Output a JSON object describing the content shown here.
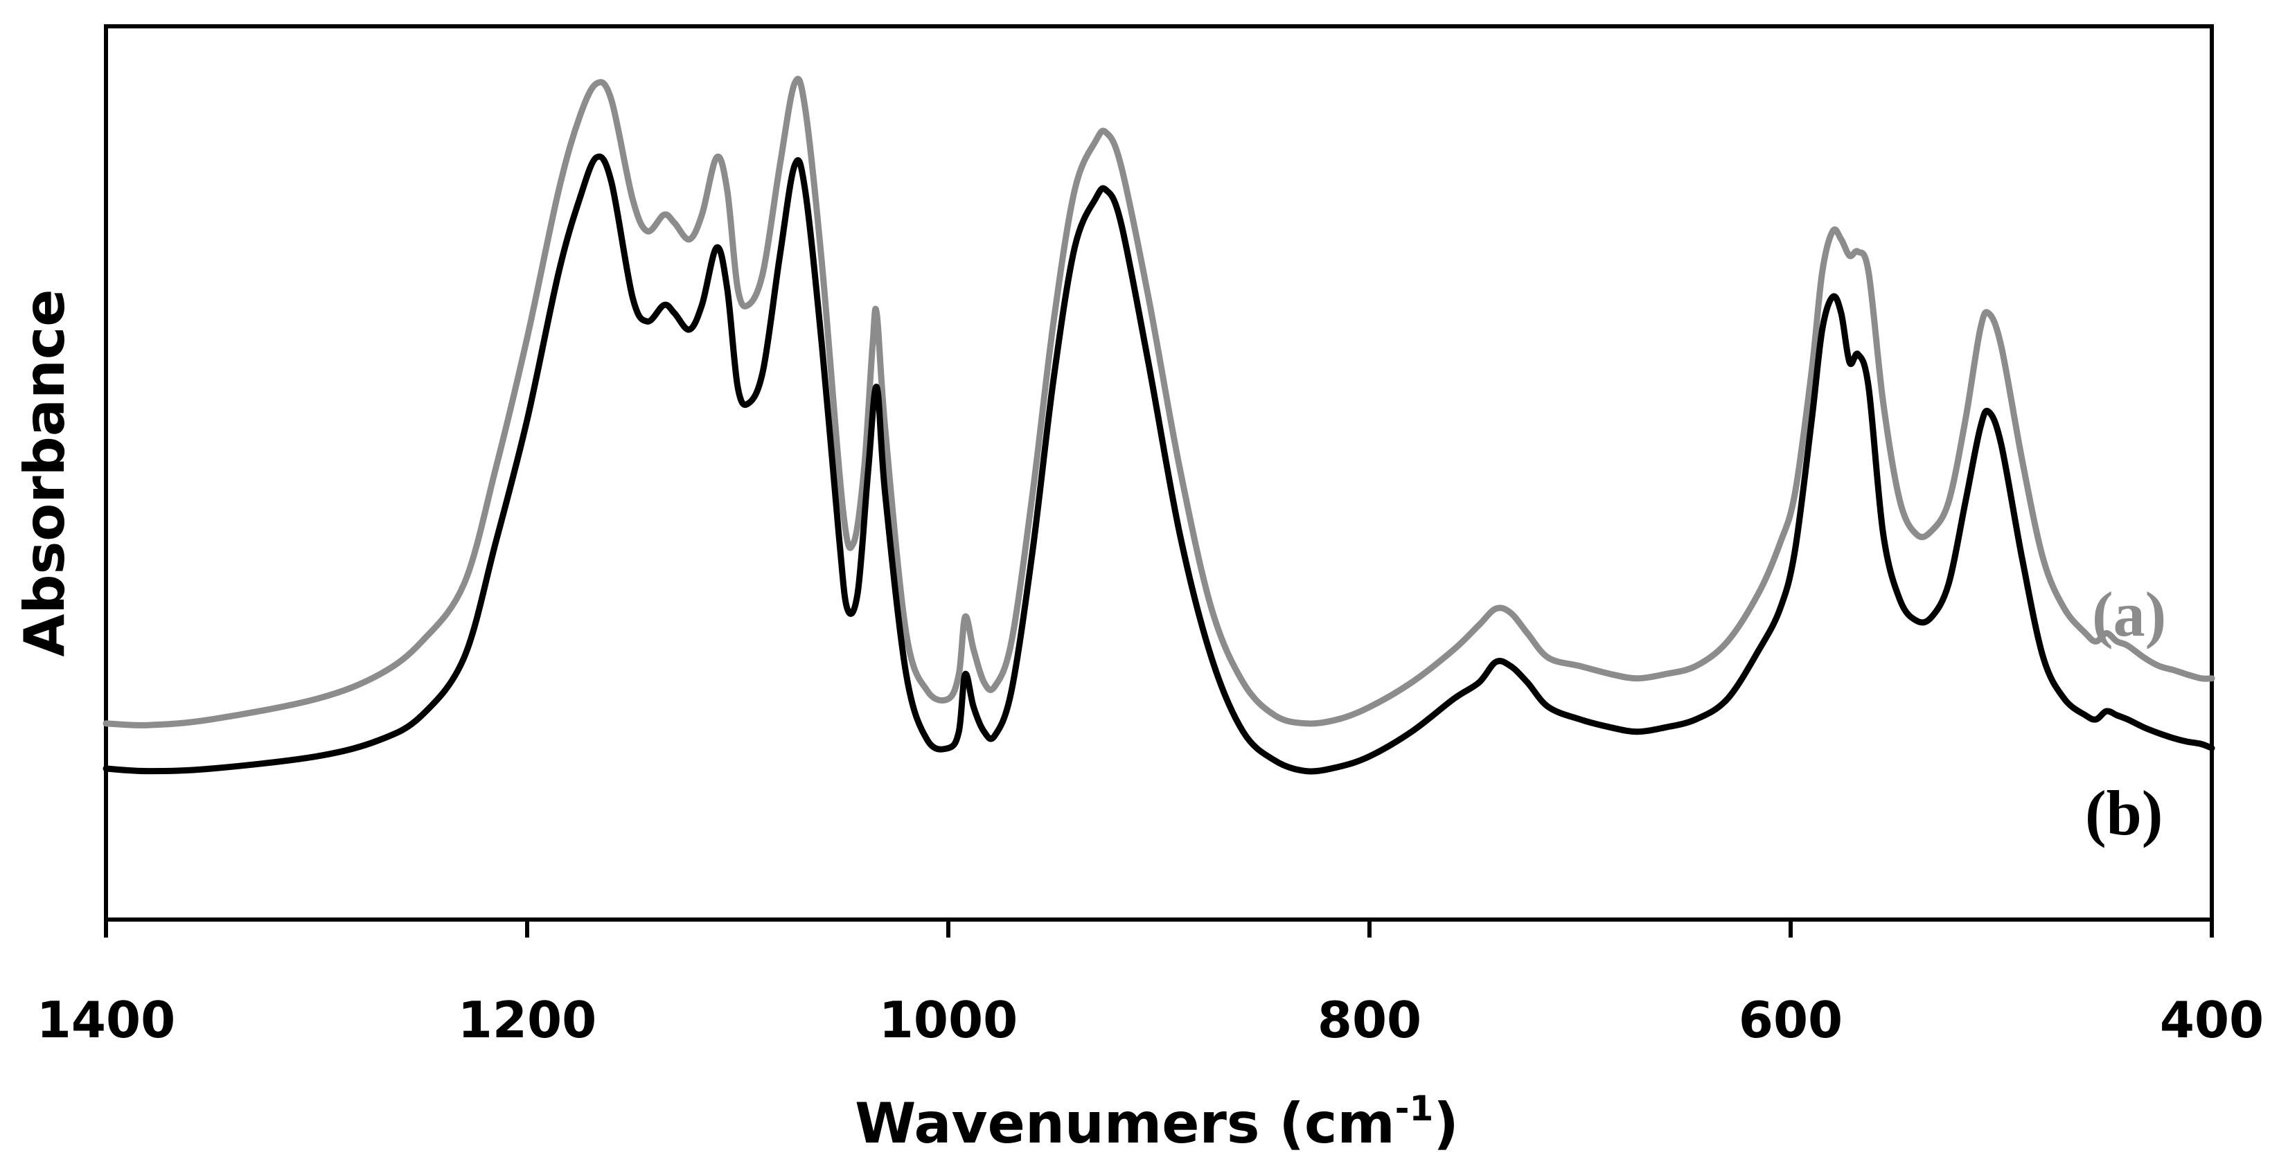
{
  "chart_data": {
    "type": "line",
    "title": "",
    "xlabel": "Wavenumers (cm",
    "xlabel_sup": "-1",
    "xlabel_close": ")",
    "ylabel": "Absorbance",
    "xlim": [
      1400,
      400
    ],
    "x_reversed": true,
    "ylim": [
      0,
      1
    ],
    "y_ticks_shown": false,
    "grid": false,
    "x_ticks": [
      "1400",
      "1200",
      "1000",
      "800",
      "600",
      "400"
    ],
    "series": [
      {
        "name": "(a)",
        "color": "#8c8c8c",
        "points": [
          [
            1400,
            0.19
          ],
          [
            1380,
            0.188
          ],
          [
            1350,
            0.195
          ],
          [
            1300,
            0.22
          ],
          [
            1270,
            0.25
          ],
          [
            1250,
            0.29
          ],
          [
            1230,
            0.36
          ],
          [
            1215,
            0.5
          ],
          [
            1200,
            0.66
          ],
          [
            1185,
            0.84
          ],
          [
            1175,
            0.93
          ],
          [
            1167,
            0.97
          ],
          [
            1160,
            0.95
          ],
          [
            1150,
            0.83
          ],
          [
            1143,
            0.79
          ],
          [
            1135,
            0.81
          ],
          [
            1130,
            0.8
          ],
          [
            1123,
            0.78
          ],
          [
            1117,
            0.81
          ],
          [
            1110,
            0.88
          ],
          [
            1105,
            0.84
          ],
          [
            1100,
            0.72
          ],
          [
            1095,
            0.7
          ],
          [
            1088,
            0.74
          ],
          [
            1080,
            0.87
          ],
          [
            1073,
            0.97
          ],
          [
            1068,
            0.94
          ],
          [
            1060,
            0.75
          ],
          [
            1050,
            0.45
          ],
          [
            1045,
            0.41
          ],
          [
            1040,
            0.5
          ],
          [
            1036,
            0.65
          ],
          [
            1034,
            0.69
          ],
          [
            1030,
            0.55
          ],
          [
            1020,
            0.3
          ],
          [
            1010,
            0.23
          ],
          [
            1000,
            0.22
          ],
          [
            995,
            0.25
          ],
          [
            992,
            0.32
          ],
          [
            988,
            0.28
          ],
          [
            983,
            0.24
          ],
          [
            978,
            0.235
          ],
          [
            970,
            0.29
          ],
          [
            960,
            0.47
          ],
          [
            950,
            0.68
          ],
          [
            940,
            0.84
          ],
          [
            930,
            0.9
          ],
          [
            925,
            0.91
          ],
          [
            918,
            0.87
          ],
          [
            905,
            0.71
          ],
          [
            890,
            0.5
          ],
          [
            875,
            0.33
          ],
          [
            860,
            0.24
          ],
          [
            845,
            0.2
          ],
          [
            830,
            0.19
          ],
          [
            815,
            0.195
          ],
          [
            800,
            0.21
          ],
          [
            780,
            0.24
          ],
          [
            760,
            0.28
          ],
          [
            748,
            0.31
          ],
          [
            740,
            0.33
          ],
          [
            733,
            0.325
          ],
          [
            725,
            0.3
          ],
          [
            715,
            0.27
          ],
          [
            700,
            0.26
          ],
          [
            685,
            0.25
          ],
          [
            673,
            0.245
          ],
          [
            660,
            0.25
          ],
          [
            645,
            0.26
          ],
          [
            630,
            0.29
          ],
          [
            615,
            0.35
          ],
          [
            605,
            0.41
          ],
          [
            598,
            0.47
          ],
          [
            590,
            0.62
          ],
          [
            585,
            0.74
          ],
          [
            580,
            0.79
          ],
          [
            576,
            0.78
          ],
          [
            572,
            0.76
          ],
          [
            568,
            0.765
          ],
          [
            563,
            0.74
          ],
          [
            556,
            0.58
          ],
          [
            548,
            0.46
          ],
          [
            540,
            0.42
          ],
          [
            533,
            0.425
          ],
          [
            525,
            0.46
          ],
          [
            517,
            0.56
          ],
          [
            510,
            0.67
          ],
          [
            506,
            0.69
          ],
          [
            500,
            0.65
          ],
          [
            490,
            0.51
          ],
          [
            480,
            0.39
          ],
          [
            470,
            0.33
          ],
          [
            460,
            0.3
          ],
          [
            455,
            0.29
          ],
          [
            450,
            0.3
          ],
          [
            445,
            0.29
          ],
          [
            440,
            0.285
          ],
          [
            432,
            0.27
          ],
          [
            425,
            0.26
          ],
          [
            418,
            0.255
          ],
          [
            412,
            0.25
          ],
          [
            405,
            0.245
          ],
          [
            400,
            0.245
          ]
        ]
      },
      {
        "name": "(b)",
        "color": "#000000",
        "points": [
          [
            1400,
            0.135
          ],
          [
            1380,
            0.132
          ],
          [
            1350,
            0.135
          ],
          [
            1300,
            0.15
          ],
          [
            1270,
            0.17
          ],
          [
            1250,
            0.2
          ],
          [
            1230,
            0.27
          ],
          [
            1215,
            0.41
          ],
          [
            1200,
            0.56
          ],
          [
            1185,
            0.74
          ],
          [
            1175,
            0.83
          ],
          [
            1167,
            0.88
          ],
          [
            1160,
            0.85
          ],
          [
            1150,
            0.71
          ],
          [
            1143,
            0.68
          ],
          [
            1135,
            0.7
          ],
          [
            1130,
            0.69
          ],
          [
            1123,
            0.67
          ],
          [
            1117,
            0.7
          ],
          [
            1110,
            0.77
          ],
          [
            1105,
            0.72
          ],
          [
            1100,
            0.6
          ],
          [
            1095,
            0.58
          ],
          [
            1088,
            0.62
          ],
          [
            1080,
            0.76
          ],
          [
            1073,
            0.87
          ],
          [
            1068,
            0.84
          ],
          [
            1060,
            0.65
          ],
          [
            1052,
            0.42
          ],
          [
            1048,
            0.33
          ],
          [
            1043,
            0.35
          ],
          [
            1038,
            0.5
          ],
          [
            1034,
            0.6
          ],
          [
            1030,
            0.47
          ],
          [
            1020,
            0.25
          ],
          [
            1010,
            0.17
          ],
          [
            1000,
            0.16
          ],
          [
            995,
            0.18
          ],
          [
            992,
            0.25
          ],
          [
            988,
            0.21
          ],
          [
            983,
            0.18
          ],
          [
            978,
            0.175
          ],
          [
            970,
            0.23
          ],
          [
            960,
            0.4
          ],
          [
            950,
            0.61
          ],
          [
            940,
            0.77
          ],
          [
            930,
            0.83
          ],
          [
            925,
            0.84
          ],
          [
            918,
            0.8
          ],
          [
            905,
            0.63
          ],
          [
            890,
            0.42
          ],
          [
            875,
            0.27
          ],
          [
            860,
            0.18
          ],
          [
            845,
            0.145
          ],
          [
            830,
            0.132
          ],
          [
            815,
            0.137
          ],
          [
            800,
            0.15
          ],
          [
            780,
            0.18
          ],
          [
            760,
            0.22
          ],
          [
            748,
            0.24
          ],
          [
            740,
            0.265
          ],
          [
            733,
            0.26
          ],
          [
            725,
            0.24
          ],
          [
            715,
            0.21
          ],
          [
            700,
            0.195
          ],
          [
            685,
            0.185
          ],
          [
            673,
            0.18
          ],
          [
            660,
            0.185
          ],
          [
            645,
            0.195
          ],
          [
            630,
            0.22
          ],
          [
            615,
            0.28
          ],
          [
            605,
            0.33
          ],
          [
            598,
            0.4
          ],
          [
            590,
            0.56
          ],
          [
            585,
            0.67
          ],
          [
            580,
            0.71
          ],
          [
            576,
            0.69
          ],
          [
            572,
            0.63
          ],
          [
            568,
            0.64
          ],
          [
            563,
            0.6
          ],
          [
            556,
            0.42
          ],
          [
            548,
            0.34
          ],
          [
            540,
            0.315
          ],
          [
            533,
            0.32
          ],
          [
            525,
            0.36
          ],
          [
            517,
            0.46
          ],
          [
            510,
            0.55
          ],
          [
            506,
            0.57
          ],
          [
            500,
            0.53
          ],
          [
            490,
            0.39
          ],
          [
            480,
            0.27
          ],
          [
            470,
            0.22
          ],
          [
            460,
            0.2
          ],
          [
            455,
            0.195
          ],
          [
            450,
            0.205
          ],
          [
            445,
            0.2
          ],
          [
            440,
            0.195
          ],
          [
            432,
            0.185
          ],
          [
            425,
            0.178
          ],
          [
            418,
            0.172
          ],
          [
            412,
            0.168
          ],
          [
            405,
            0.165
          ],
          [
            400,
            0.16
          ]
        ]
      }
    ]
  }
}
